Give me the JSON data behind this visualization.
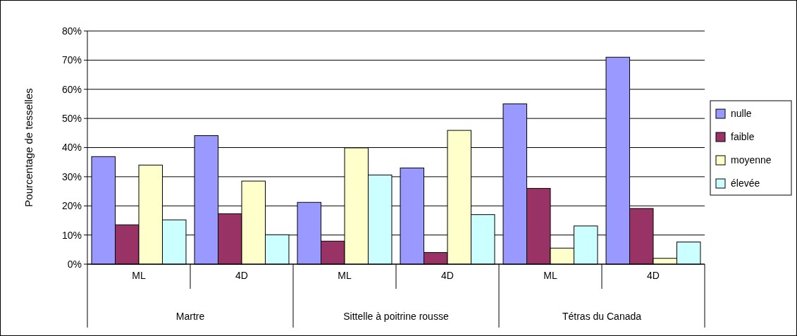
{
  "chart_data": {
    "type": "bar",
    "ylabel": "Pourcentage de tesselles",
    "categories": [
      "ML",
      "4D",
      "ML",
      "4D",
      "ML",
      "4D"
    ],
    "annotations": [
      "Martre",
      "Sittelle à poitrine rousse",
      "Tétras du Canada"
    ],
    "series": [
      {
        "name": "nulle",
        "color": "#9999ff",
        "values": [
          36.9,
          44.1,
          21.2,
          33.0,
          55.0,
          71.0
        ]
      },
      {
        "name": "faible",
        "color": "#993366",
        "values": [
          13.5,
          17.3,
          7.9,
          4.0,
          26.0,
          19.1
        ]
      },
      {
        "name": "moyenne",
        "color": "#ffffcc",
        "values": [
          34.0,
          28.5,
          39.9,
          45.9,
          5.5,
          2.0
        ]
      },
      {
        "name": "élevée",
        "color": "#ccffff",
        "values": [
          15.2,
          10.1,
          30.6,
          17.0,
          13.1,
          7.6
        ]
      }
    ],
    "ylim": [
      0,
      80
    ],
    "yticks": [
      {
        "value": 0,
        "label": "0%"
      },
      {
        "value": 10,
        "label": "10%"
      },
      {
        "value": 20,
        "label": "20%"
      },
      {
        "value": 30,
        "label": "30%"
      },
      {
        "value": 40,
        "label": "40%"
      },
      {
        "value": 50,
        "label": "50%"
      },
      {
        "value": 60,
        "label": "60%"
      },
      {
        "value": 70,
        "label": "70%"
      },
      {
        "value": 80,
        "label": "80%"
      }
    ],
    "grid": "y",
    "legend": "right"
  }
}
